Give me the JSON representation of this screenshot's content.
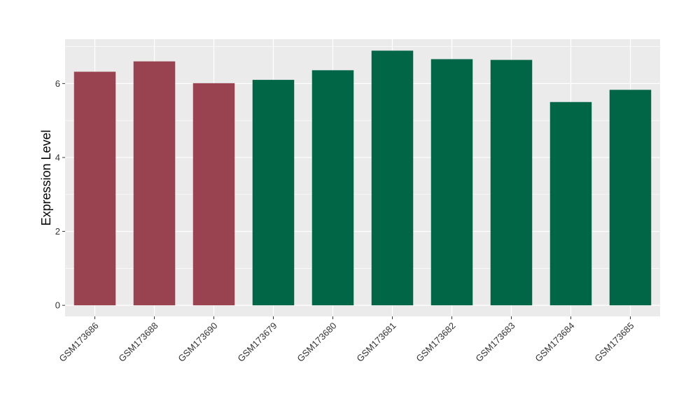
{
  "chart_data": {
    "type": "bar",
    "title": "",
    "xlabel": "",
    "ylabel": "Expression Level",
    "ylim": [
      -0.3,
      7.2
    ],
    "yticks": [
      0,
      2,
      4,
      6
    ],
    "grid": true,
    "legend": "none",
    "categories": [
      "GSM173686",
      "GSM173688",
      "GSM173690",
      "GSM173679",
      "GSM173680",
      "GSM173681",
      "GSM173682",
      "GSM173683",
      "GSM173684",
      "GSM173685"
    ],
    "values": [
      6.32,
      6.6,
      6.01,
      6.1,
      6.36,
      6.89,
      6.66,
      6.64,
      5.5,
      5.83
    ],
    "bar_groups": [
      "group1",
      "group1",
      "group1",
      "group2",
      "group2",
      "group2",
      "group2",
      "group2",
      "group2",
      "group2"
    ],
    "colors": {
      "group1": "#9A4350",
      "group2": "#006646",
      "panel_background": "#EBEBEB",
      "grid": "#FFFFFF"
    }
  }
}
